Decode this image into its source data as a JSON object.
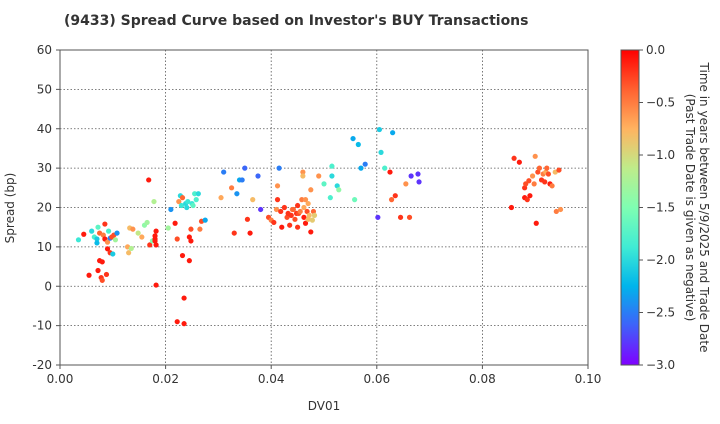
{
  "colors": {
    "text": "#333333",
    "grid": "#555555",
    "scale": [
      "#7f00ff",
      "#3f61fa",
      "#00b4eb",
      "#40ecd4",
      "#7ffeb2",
      "#bfec8a",
      "#ffb360",
      "#ff6130",
      "#ff0000"
    ]
  },
  "chart_data": {
    "type": "scatter",
    "title": "(9433)   Spread Curve based on Investor's BUY Transactions",
    "xlabel": "DV01",
    "ylabel": "Spread (bp)",
    "xlim": [
      0.0,
      0.1
    ],
    "ylim": [
      -20,
      60
    ],
    "xticks": [
      0.0,
      0.02,
      0.04,
      0.06,
      0.08,
      0.1
    ],
    "yticks": [
      -20,
      -10,
      0,
      10,
      20,
      30,
      40,
      50,
      60
    ],
    "xtick_labels": [
      "0.00",
      "0.02",
      "0.04",
      "0.06",
      "0.08",
      "0.10"
    ],
    "ytick_labels": [
      "-20",
      "-10",
      "0",
      "10",
      "20",
      "30",
      "40",
      "50",
      "60"
    ],
    "grid": true,
    "colorbar": {
      "label": "Time in years between 5/9/2025 and Trade Date\n(Past Trade Date is given as negative)",
      "range": [
        -3.0,
        0.0
      ],
      "ticks": [
        0.0,
        -0.5,
        -1.0,
        -1.5,
        -2.0,
        -2.5,
        -3.0
      ],
      "tick_labels": [
        "0.0",
        "−0.5",
        "−1.0",
        "−1.5",
        "−2.0",
        "−2.5",
        "−3.0"
      ]
    },
    "points": [
      [
        0.0035,
        11.8,
        -1.9
      ],
      [
        0.0045,
        13.2,
        -0.1
      ],
      [
        0.0055,
        2.8,
        -0.1
      ],
      [
        0.006,
        14.0,
        -2.0
      ],
      [
        0.0065,
        12.5,
        -1.8
      ],
      [
        0.007,
        12.0,
        -2.1
      ],
      [
        0.007,
        11.0,
        -2.2
      ],
      [
        0.0072,
        15.0,
        -1.7
      ],
      [
        0.0075,
        13.5,
        -0.4
      ],
      [
        0.0075,
        6.5,
        -0.1
      ],
      [
        0.0072,
        4.0,
        -0.1
      ],
      [
        0.0078,
        2.2,
        -0.2
      ],
      [
        0.008,
        1.5,
        -0.3
      ],
      [
        0.008,
        6.2,
        -0.1
      ],
      [
        0.0082,
        13.0,
        -0.5
      ],
      [
        0.0085,
        12.0,
        -0.1
      ],
      [
        0.0085,
        15.8,
        -0.2
      ],
      [
        0.0088,
        3.0,
        -0.2
      ],
      [
        0.009,
        11.2,
        -0.6
      ],
      [
        0.009,
        9.5,
        -0.1
      ],
      [
        0.0092,
        14.0,
        -1.8
      ],
      [
        0.0095,
        8.5,
        -0.2
      ],
      [
        0.0095,
        12.2,
        -2.5
      ],
      [
        0.0098,
        12.5,
        -0.3
      ],
      [
        0.01,
        8.2,
        -2.1
      ],
      [
        0.0102,
        13.0,
        -0.3
      ],
      [
        0.0105,
        11.8,
        -1.3
      ],
      [
        0.0108,
        13.5,
        -2.4
      ],
      [
        0.0128,
        10.0,
        -0.7
      ],
      [
        0.013,
        8.5,
        -0.8
      ],
      [
        0.0132,
        14.8,
        -0.8
      ],
      [
        0.0135,
        9.6,
        -1.2
      ],
      [
        0.0138,
        14.5,
        -0.6
      ],
      [
        0.0148,
        13.5,
        -1.1
      ],
      [
        0.0155,
        12.5,
        -0.7
      ],
      [
        0.016,
        15.5,
        -1.4
      ],
      [
        0.0165,
        16.2,
        -1.3
      ],
      [
        0.0168,
        27.0,
        -0.1
      ],
      [
        0.017,
        10.5,
        -0.2
      ],
      [
        0.0175,
        11.5,
        -1.5
      ],
      [
        0.0178,
        21.5,
        -1.2
      ],
      [
        0.018,
        12.8,
        -0.1
      ],
      [
        0.018,
        12.0,
        -0.1
      ],
      [
        0.018,
        11.5,
        -0.1
      ],
      [
        0.0182,
        10.5,
        -0.1
      ],
      [
        0.0182,
        14.0,
        -0.1
      ],
      [
        0.0182,
        0.3,
        -0.1
      ],
      [
        0.0205,
        14.8,
        -1.3
      ],
      [
        0.021,
        19.5,
        -2.4
      ],
      [
        0.0218,
        16.0,
        -0.1
      ],
      [
        0.0222,
        12.0,
        -0.3
      ],
      [
        0.0222,
        -9.0,
        -0.1
      ],
      [
        0.0225,
        21.5,
        -0.6
      ],
      [
        0.0228,
        23.0,
        -2.0
      ],
      [
        0.023,
        20.5,
        -1.9
      ],
      [
        0.0232,
        22.5,
        -0.4
      ],
      [
        0.0232,
        7.8,
        -0.1
      ],
      [
        0.0235,
        -3.0,
        -0.1
      ],
      [
        0.0235,
        -9.5,
        -0.1
      ],
      [
        0.0238,
        21.0,
        -2.0
      ],
      [
        0.024,
        20.0,
        -2.0
      ],
      [
        0.0242,
        21.5,
        -1.9
      ],
      [
        0.0245,
        6.5,
        -0.1
      ],
      [
        0.0245,
        12.5,
        -0.1
      ],
      [
        0.0248,
        14.5,
        -0.3
      ],
      [
        0.0248,
        11.5,
        -0.1
      ],
      [
        0.025,
        21.0,
        -1.9
      ],
      [
        0.0252,
        20.5,
        -1.7
      ],
      [
        0.0255,
        23.5,
        -1.8
      ],
      [
        0.0258,
        22.0,
        -1.8
      ],
      [
        0.0262,
        23.5,
        -2.0
      ],
      [
        0.0265,
        14.5,
        -0.5
      ],
      [
        0.0268,
        16.5,
        -0.3
      ],
      [
        0.0275,
        16.8,
        -2.3
      ],
      [
        0.0305,
        22.5,
        -0.7
      ],
      [
        0.031,
        29.0,
        -2.5
      ],
      [
        0.0325,
        25.0,
        -0.5
      ],
      [
        0.033,
        13.5,
        -0.2
      ],
      [
        0.0335,
        23.5,
        -2.4
      ],
      [
        0.034,
        27.0,
        -2.3
      ],
      [
        0.0345,
        27.0,
        -2.5
      ],
      [
        0.035,
        30.0,
        -2.6
      ],
      [
        0.0355,
        17.0,
        -0.2
      ],
      [
        0.036,
        13.5,
        -0.1
      ],
      [
        0.0365,
        22.0,
        -0.8
      ],
      [
        0.0375,
        28.0,
        -2.6
      ],
      [
        0.038,
        19.5,
        -2.8
      ],
      [
        0.0395,
        17.5,
        -0.3
      ],
      [
        0.04,
        16.8,
        -0.5
      ],
      [
        0.0405,
        16.2,
        -0.2
      ],
      [
        0.041,
        19.5,
        -0.6
      ],
      [
        0.0412,
        25.5,
        -0.6
      ],
      [
        0.0412,
        22.0,
        -0.2
      ],
      [
        0.0415,
        30.0,
        -2.5
      ],
      [
        0.0418,
        19.0,
        -0.2
      ],
      [
        0.042,
        15.0,
        -0.1
      ],
      [
        0.0425,
        20.0,
        -0.2
      ],
      [
        0.043,
        17.5,
        -0.3
      ],
      [
        0.0432,
        18.5,
        -0.2
      ],
      [
        0.0435,
        15.5,
        -0.2
      ],
      [
        0.0438,
        18.0,
        -0.2
      ],
      [
        0.044,
        19.5,
        -0.5
      ],
      [
        0.0442,
        19.5,
        -0.4
      ],
      [
        0.0445,
        17.0,
        -0.3
      ],
      [
        0.0448,
        18.5,
        -0.2
      ],
      [
        0.045,
        15.0,
        -0.2
      ],
      [
        0.045,
        20.5,
        -0.2
      ],
      [
        0.0452,
        18.5,
        -0.3
      ],
      [
        0.0455,
        19.0,
        -0.5
      ],
      [
        0.0458,
        22.0,
        -0.5
      ],
      [
        0.046,
        29.0,
        -0.6
      ],
      [
        0.046,
        28.0,
        -0.8
      ],
      [
        0.0462,
        17.5,
        -0.1
      ],
      [
        0.0462,
        20.0,
        -0.7
      ],
      [
        0.0465,
        16.0,
        -0.1
      ],
      [
        0.0465,
        22.0,
        -0.6
      ],
      [
        0.0468,
        19.0,
        -0.3
      ],
      [
        0.047,
        17.0,
        -0.8
      ],
      [
        0.047,
        21.0,
        -0.7
      ],
      [
        0.0472,
        18.0,
        -0.8
      ],
      [
        0.0475,
        13.8,
        -0.1
      ],
      [
        0.0475,
        24.5,
        -0.6
      ],
      [
        0.0478,
        16.8,
        -0.9
      ],
      [
        0.048,
        19.0,
        -0.4
      ],
      [
        0.0482,
        18.0,
        -0.9
      ],
      [
        0.049,
        28.0,
        -0.6
      ],
      [
        0.05,
        26.0,
        -1.7
      ],
      [
        0.0512,
        22.5,
        -1.8
      ],
      [
        0.0515,
        30.5,
        -1.8
      ],
      [
        0.0515,
        28.0,
        -2.0
      ],
      [
        0.0525,
        25.5,
        -2.0
      ],
      [
        0.0528,
        24.5,
        -1.4
      ],
      [
        0.0555,
        37.5,
        -2.3
      ],
      [
        0.0558,
        22.0,
        -1.6
      ],
      [
        0.0565,
        36.0,
        -2.2
      ],
      [
        0.057,
        30.0,
        -2.3
      ],
      [
        0.0578,
        31.0,
        -2.5
      ],
      [
        0.0602,
        17.5,
        -2.8
      ],
      [
        0.0605,
        39.8,
        -2.1
      ],
      [
        0.0608,
        34.0,
        -2.0
      ],
      [
        0.0615,
        30.0,
        -1.8
      ],
      [
        0.0625,
        29.0,
        -0.1
      ],
      [
        0.0628,
        22.0,
        -0.4
      ],
      [
        0.063,
        39.0,
        -2.3
      ],
      [
        0.0635,
        23.0,
        -0.2
      ],
      [
        0.0645,
        17.5,
        -0.2
      ],
      [
        0.0655,
        26.0,
        -0.6
      ],
      [
        0.0662,
        17.5,
        -0.3
      ],
      [
        0.0665,
        28.0,
        -2.8
      ],
      [
        0.0678,
        28.5,
        -2.8
      ],
      [
        0.068,
        26.5,
        -2.8
      ],
      [
        0.0855,
        20.0,
        -0.1
      ],
      [
        0.086,
        32.5,
        -0.2
      ],
      [
        0.087,
        31.5,
        -0.1
      ],
      [
        0.088,
        22.5,
        -0.1
      ],
      [
        0.088,
        25.0,
        -0.2
      ],
      [
        0.0882,
        26.0,
        -0.3
      ],
      [
        0.0885,
        22.0,
        -0.2
      ],
      [
        0.0888,
        26.8,
        -0.3
      ],
      [
        0.089,
        23.0,
        -0.1
      ],
      [
        0.0895,
        28.0,
        -0.6
      ],
      [
        0.0898,
        26.0,
        -0.5
      ],
      [
        0.09,
        33.0,
        -0.6
      ],
      [
        0.0902,
        16.0,
        -0.1
      ],
      [
        0.0905,
        29.0,
        -0.3
      ],
      [
        0.0908,
        30.0,
        -0.4
      ],
      [
        0.0912,
        27.0,
        -0.2
      ],
      [
        0.0915,
        28.5,
        -0.5
      ],
      [
        0.0918,
        26.5,
        -0.2
      ],
      [
        0.092,
        29.0,
        -0.7
      ],
      [
        0.0922,
        30.0,
        -0.4
      ],
      [
        0.0925,
        28.5,
        -0.3
      ],
      [
        0.0928,
        26.0,
        -0.1
      ],
      [
        0.0932,
        25.5,
        -0.5
      ],
      [
        0.0938,
        29.0,
        -0.8
      ],
      [
        0.094,
        19.0,
        -0.5
      ],
      [
        0.0945,
        29.5,
        -0.3
      ],
      [
        0.0948,
        19.5,
        -0.6
      ]
    ]
  }
}
